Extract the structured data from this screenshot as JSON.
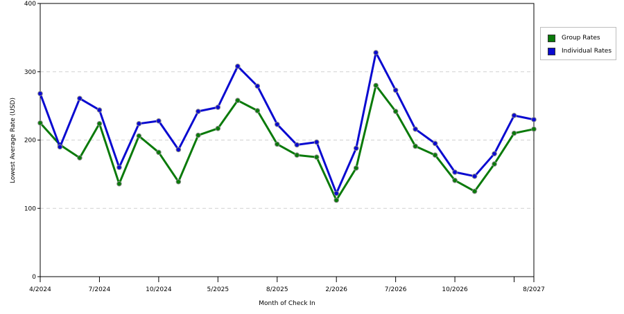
{
  "chart_data": {
    "type": "line",
    "xlabel": "Month of Check In",
    "ylabel": "Lowest Average Rate (USD)",
    "ylim": [
      0,
      400
    ],
    "yticks": [
      0,
      100,
      200,
      300,
      400
    ],
    "grid": true,
    "legend_position": "right",
    "x_tick_labels": [
      {
        "index": 0,
        "label": "4/2024"
      },
      {
        "index": 3,
        "label": "7/2024"
      },
      {
        "index": 6,
        "label": "10/2024"
      },
      {
        "index": 9,
        "label": "5/2025"
      },
      {
        "index": 12,
        "label": "8/2025"
      },
      {
        "index": 15,
        "label": "2/2026"
      },
      {
        "index": 18,
        "label": "7/2026"
      },
      {
        "index": 21,
        "label": "10/2026"
      },
      {
        "index": 24,
        "label": ""
      },
      {
        "index": 25,
        "label": "8/2027"
      }
    ],
    "series": [
      {
        "name": "Group Rates",
        "color": "#0a7a0a",
        "values": [
          225,
          193,
          174,
          224,
          136,
          206,
          182,
          139,
          207,
          217,
          258,
          243,
          194,
          178,
          175,
          112,
          159,
          280,
          242,
          191,
          178,
          141,
          125,
          165,
          210,
          216
        ]
      },
      {
        "name": "Individual Rates",
        "color": "#0a0ad0",
        "values": [
          268,
          190,
          261,
          244,
          160,
          224,
          228,
          186,
          242,
          248,
          308,
          279,
          223,
          193,
          197,
          122,
          188,
          328,
          273,
          216,
          195,
          153,
          147,
          180,
          236,
          230
        ]
      }
    ]
  }
}
